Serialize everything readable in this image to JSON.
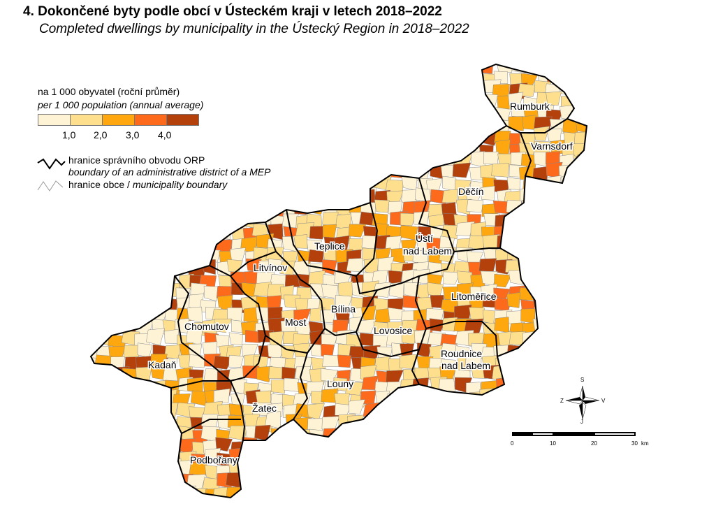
{
  "title_cs": "4. Dokončené byty podle obcí v Ústeckém kraji v letech 2018–2022",
  "title_en": "Completed dwellings by municipality in the Ústecký Region in 2018–2022",
  "legend": {
    "unit_cs": "na 1 000 obyvatel (roční průměr)",
    "unit_en": "per 1 000 population (annual average)",
    "classes": [
      {
        "color": "#fff3d6"
      },
      {
        "color": "#fedf8e"
      },
      {
        "color": "#fea70f"
      },
      {
        "color": "#fe6a1c"
      },
      {
        "color": "#b4410c"
      }
    ],
    "breaks": [
      "1,0",
      "2,0",
      "3,0",
      "4,0"
    ],
    "orp_boundary_cs": "hranice správního obvodu ORP",
    "orp_boundary_en": "boundary of an administrative district of a MEP",
    "municipality_boundary_cs": "hranice obce /",
    "municipality_boundary_en": "municipality boundary"
  },
  "districts": [
    {
      "name": "Rumburk",
      "color": "#fedf8e"
    },
    {
      "name": "Varnsdorf",
      "color": "#fedf8e"
    },
    {
      "name": "Děčín",
      "color": "#fff3d6"
    },
    {
      "name": "Teplice",
      "color": "#fe6a1c"
    },
    {
      "name": "Ústí",
      "name2": "nad Labem",
      "color": "#b4410c"
    },
    {
      "name": "Litvínov",
      "color": "#fff3d6"
    },
    {
      "name": "Litoměřice",
      "color": "#fedf8e"
    },
    {
      "name": "Bílina",
      "color": "#fff3d6"
    },
    {
      "name": "Chomutov",
      "color": "#b4410c"
    },
    {
      "name": "Most",
      "color": "#fff3d6"
    },
    {
      "name": "Lovosice",
      "color": "#fedf8e"
    },
    {
      "name": "Roudnice",
      "name2": "nad Labem",
      "color": "#fe6a1c"
    },
    {
      "name": "Kadaň",
      "color": "#fedf8e"
    },
    {
      "name": "Louny",
      "color": "#fff3d6"
    },
    {
      "name": "Žatec",
      "color": "#fedf8e"
    },
    {
      "name": "Podbořany",
      "color": "#fedf8e"
    }
  ],
  "compass": {
    "n": "S",
    "s": "J",
    "w": "Z",
    "e": "V"
  },
  "scalebar": {
    "ticks": [
      "0",
      "10",
      "20",
      "30"
    ],
    "unit": "km"
  }
}
